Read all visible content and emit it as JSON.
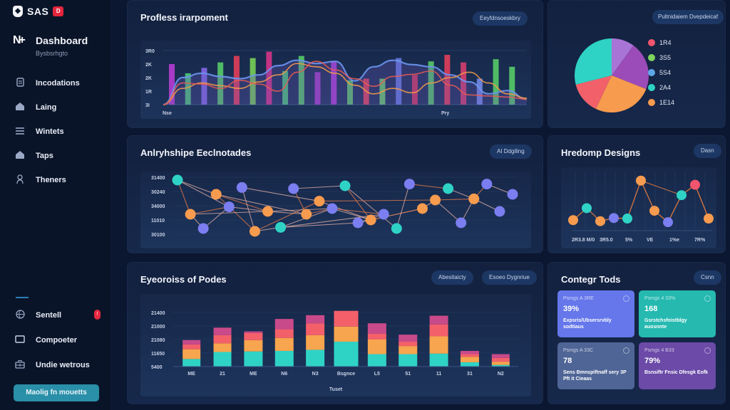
{
  "sidebar": {
    "brand": {
      "logo_icon": "shield-logo-icon",
      "name": "SAS",
      "badge": "D"
    },
    "dashboard": {
      "icon": "logo-mark-icon",
      "title": "Dashboard",
      "subtitle": "Bysbsrhgto"
    },
    "items": [
      {
        "label": "Incodations",
        "icon": "document-icon"
      },
      {
        "label": "Laing",
        "icon": "home-icon"
      },
      {
        "label": "Wintets",
        "icon": "menu-lines-icon"
      },
      {
        "label": "Taps",
        "icon": "home-icon"
      },
      {
        "label": "Theners",
        "icon": "user-icon"
      }
    ],
    "bottom_items": [
      {
        "label": "Sentell",
        "icon": "globe-icon",
        "badge": "!"
      },
      {
        "label": "Compoeter",
        "icon": "monitor-icon"
      },
      {
        "label": "Undie wetrous",
        "icon": "toolbox-icon"
      }
    ],
    "cta_label": "Maolig fn mouetts"
  },
  "panels": {
    "performance": {
      "title": "Profless irarpoment",
      "pill": "Eeyfdnsoeskbry"
    },
    "pie": {
      "pill": "Pultnidaiem Dvepdeicaf"
    },
    "network": {
      "title": "Anlryhshipe Eeclnotades",
      "pill": "AI Ddgiling"
    },
    "scatter": {
      "title": "Hredomp Designs",
      "pill": "Dasn"
    },
    "stacked": {
      "title": "Eyeoroiss of Podes",
      "pills": [
        "Abesitaicty",
        "Esoeo Dygnriue"
      ]
    },
    "kpis": {
      "title": "Contegr Tods",
      "pill": "Csnn",
      "cards": [
        {
          "label": "Psmgs  A 3RE",
          "value": "39%",
          "desc": "Expsris/Ubsersrvbly sodtiaus",
          "color": "#6577ea"
        },
        {
          "label": "Psmgs  4 33%",
          "value": "168",
          "desc": "Gsrstchsfoistblgy auosnnte",
          "color": "#25b9b0"
        },
        {
          "label": "Psmgs  A 33C",
          "value": "78",
          "desc": "Sens Bmnspiftnaff sery 3P Pft it Cieaas",
          "color": "#4f6596"
        },
        {
          "label": "Psmgs  4 B33",
          "value": "79%",
          "desc": "Bsnsiftr Fnsic Dfesgk Eofk",
          "color": "#6b4aa8"
        }
      ]
    }
  },
  "chart_data": [
    {
      "type": "bar",
      "name": "performance-combo",
      "title": "Profless irarpoment",
      "yticks": [
        "3R0",
        "2K",
        "2K",
        "1R",
        "3I"
      ],
      "xticks": [
        "Nse",
        "Pry"
      ],
      "ylim": [
        0,
        100
      ],
      "bars": [
        {
          "v": 75,
          "c": "#c03ddb"
        },
        {
          "v": 58,
          "c": "#4fd17a"
        },
        {
          "v": 68,
          "c": "#8b6cf0"
        },
        {
          "v": 78,
          "c": "#5ad469"
        },
        {
          "v": 90,
          "c": "#f0405a"
        },
        {
          "v": 86,
          "c": "#7ed957"
        },
        {
          "v": 98,
          "c": "#e0358c"
        },
        {
          "v": 62,
          "c": "#4fd17a"
        },
        {
          "v": 90,
          "c": "#5ad469"
        },
        {
          "v": 60,
          "c": "#b040d0"
        },
        {
          "v": 80,
          "c": "#b93fde"
        },
        {
          "v": 45,
          "c": "#63d16a"
        },
        {
          "v": 48,
          "c": "#f0455a"
        },
        {
          "v": 48,
          "c": "#6ed86a"
        },
        {
          "v": 86,
          "c": "#6a7fea"
        },
        {
          "v": 55,
          "c": "#e0385e"
        },
        {
          "v": 80,
          "c": "#5ad469"
        },
        {
          "v": 92,
          "c": "#f0405a"
        },
        {
          "v": 78,
          "c": "#e04070"
        },
        {
          "v": 48,
          "c": "#7a8ff0"
        },
        {
          "v": 84,
          "c": "#5ad469"
        },
        {
          "v": 70,
          "c": "#5ad469"
        }
      ],
      "series": [
        {
          "name": "blue",
          "color": "#6b95f0",
          "values": [
            0,
            50,
            58,
            52,
            48,
            55,
            72,
            82,
            76,
            80,
            44,
            70,
            82,
            74,
            70,
            55,
            42,
            20,
            26,
            10
          ]
        },
        {
          "name": "orange",
          "color": "#f29a4a",
          "values": [
            0,
            30,
            40,
            35,
            30,
            42,
            55,
            76,
            70,
            58,
            36,
            20,
            30,
            22,
            40,
            50,
            60,
            40,
            20,
            12
          ]
        },
        {
          "name": "red",
          "color": "#e45a55",
          "values": [
            0,
            40,
            38,
            30,
            45,
            38,
            25,
            60,
            80,
            64,
            48,
            34,
            52,
            56,
            62,
            36,
            18,
            16,
            14,
            10
          ]
        }
      ]
    },
    {
      "type": "pie",
      "name": "distribution-pie",
      "slices": [
        {
          "label": "1R4",
          "value": 10,
          "color": "#a875d6"
        },
        {
          "label": "3S5",
          "value": 21,
          "color": "#9b4cb8"
        },
        {
          "label": "5S4",
          "value": 26,
          "color": "#f79b4e"
        },
        {
          "label": "2A4",
          "value": 14,
          "color": "#f2616a"
        },
        {
          "label": "1E14",
          "value": 29,
          "color": "#2fd3c6"
        }
      ],
      "legend": [
        {
          "label": "1R4",
          "color": "#f2556e"
        },
        {
          "label": "3S5",
          "color": "#7fd35e"
        },
        {
          "label": "5S4",
          "color": "#5ea8e8"
        },
        {
          "label": "2A4",
          "color": "#2fd3c6"
        },
        {
          "label": "1E14",
          "color": "#f79b4e"
        }
      ]
    },
    {
      "type": "scatter",
      "name": "network-graph",
      "title": "Anlryhshipe Eeclnotades",
      "yticks": [
        "31400",
        "30240",
        "34000",
        "11010",
        "30100"
      ],
      "ylim": [
        0,
        100
      ],
      "nodes": [
        {
          "x": 0,
          "y": 95,
          "c": "#2fd3c6"
        },
        {
          "x": 1,
          "y": 35,
          "c": "#f79b4e"
        },
        {
          "x": 2,
          "y": 10,
          "c": "#7b7ef0"
        },
        {
          "x": 3,
          "y": 70,
          "c": "#f79b4e"
        },
        {
          "x": 4,
          "y": 48,
          "c": "#7b7ef0"
        },
        {
          "x": 5,
          "y": 82,
          "c": "#7b7ef0"
        },
        {
          "x": 6,
          "y": 5,
          "c": "#f79b4e"
        },
        {
          "x": 7,
          "y": 40,
          "c": "#f79b4e"
        },
        {
          "x": 8,
          "y": 12,
          "c": "#2fd3c6"
        },
        {
          "x": 9,
          "y": 80,
          "c": "#7b7ef0"
        },
        {
          "x": 10,
          "y": 35,
          "c": "#f79b4e"
        },
        {
          "x": 11,
          "y": 58,
          "c": "#f79b4e"
        },
        {
          "x": 12,
          "y": 45,
          "c": "#7b7ef0"
        },
        {
          "x": 13,
          "y": 85,
          "c": "#2fd3c6"
        },
        {
          "x": 14,
          "y": 20,
          "c": "#7b7ef0"
        },
        {
          "x": 15,
          "y": 25,
          "c": "#f79b4e"
        },
        {
          "x": 16,
          "y": 35,
          "c": "#7b7ef0"
        },
        {
          "x": 17,
          "y": 10,
          "c": "#2fd3c6"
        },
        {
          "x": 18,
          "y": 88,
          "c": "#7b7ef0"
        },
        {
          "x": 19,
          "y": 45,
          "c": "#f79b4e"
        },
        {
          "x": 20,
          "y": 60,
          "c": "#f79b4e"
        },
        {
          "x": 21,
          "y": 80,
          "c": "#2fd3c6"
        },
        {
          "x": 22,
          "y": 20,
          "c": "#7b7ef0"
        },
        {
          "x": 23,
          "y": 62,
          "c": "#f79b4e"
        },
        {
          "x": 24,
          "y": 88,
          "c": "#7b7ef0"
        },
        {
          "x": 25,
          "y": 40,
          "c": "#7b7ef0"
        },
        {
          "x": 26,
          "y": 70,
          "c": "#7b7ef0"
        }
      ],
      "links": [
        [
          0,
          1
        ],
        [
          0,
          3
        ],
        [
          0,
          4
        ],
        [
          1,
          4
        ],
        [
          1,
          2
        ],
        [
          2,
          4
        ],
        [
          3,
          6
        ],
        [
          4,
          7
        ],
        [
          1,
          7
        ],
        [
          3,
          7
        ],
        [
          5,
          6
        ],
        [
          6,
          8
        ],
        [
          6,
          11
        ],
        [
          5,
          11
        ],
        [
          7,
          10
        ],
        [
          10,
          12
        ],
        [
          12,
          8
        ],
        [
          8,
          14
        ],
        [
          9,
          10
        ],
        [
          11,
          15
        ],
        [
          12,
          15
        ],
        [
          15,
          13
        ],
        [
          13,
          17
        ],
        [
          14,
          19
        ],
        [
          15,
          19
        ],
        [
          9,
          13
        ],
        [
          17,
          18
        ],
        [
          18,
          21
        ],
        [
          21,
          23
        ],
        [
          19,
          20
        ],
        [
          20,
          23
        ],
        [
          20,
          22
        ],
        [
          22,
          23
        ],
        [
          23,
          24
        ],
        [
          24,
          26
        ],
        [
          23,
          25
        ],
        [
          11,
          20
        ],
        [
          3,
          10
        ],
        [
          7,
          12
        ],
        [
          16,
          12
        ],
        [
          16,
          14
        ],
        [
          16,
          8
        ]
      ]
    },
    {
      "type": "scatter",
      "name": "designs-scatter",
      "title": "Hredomp Designs",
      "xticks": [
        "2R3.8 M/0",
        "3R5.0",
        "5%",
        "VE",
        "1%e",
        "7R%"
      ],
      "ylim": [
        0,
        100
      ],
      "points": [
        {
          "x": 0,
          "y": 12,
          "c": "#f79b4e"
        },
        {
          "x": 1,
          "y": 35,
          "c": "#2fd3c6"
        },
        {
          "x": 2,
          "y": 10,
          "c": "#f79b4e"
        },
        {
          "x": 3,
          "y": 16,
          "c": "#7b7ef0"
        },
        {
          "x": 4,
          "y": 15,
          "c": "#2fd3c6"
        },
        {
          "x": 5,
          "y": 88,
          "c": "#f79b4e"
        },
        {
          "x": 6,
          "y": 30,
          "c": "#f79b4e"
        },
        {
          "x": 7,
          "y": 8,
          "c": "#7b7ef0"
        },
        {
          "x": 8,
          "y": 60,
          "c": "#2fd3c6"
        },
        {
          "x": 9,
          "y": 80,
          "c": "#f2556e"
        },
        {
          "x": 10,
          "y": 15,
          "c": "#f79b4e"
        }
      ]
    },
    {
      "type": "bar",
      "name": "stacked-bars",
      "title": "Eyeoroiss of Podes",
      "yticks": [
        "21400",
        "21000",
        "21080",
        "11650",
        "5400"
      ],
      "categories": [
        "ME",
        "21",
        "ME",
        "N6",
        "N3",
        "Bsgnce",
        "L5",
        "51",
        "11",
        "31",
        "N2"
      ],
      "xlabel": "Tuset",
      "ylim": [
        0,
        100
      ],
      "series": [
        {
          "name": "teal",
          "color": "#2fd3c6",
          "values": [
            14,
            27,
            28,
            29,
            31,
            46,
            23,
            23,
            24,
            8,
            3
          ]
        },
        {
          "name": "orange",
          "color": "#f7a54e",
          "values": [
            18,
            16,
            21,
            24,
            27,
            28,
            27,
            15,
            32,
            10,
            6
          ]
        },
        {
          "name": "coral",
          "color": "#f4606a",
          "values": [
            9,
            15,
            13,
            16,
            22,
            29,
            11,
            8,
            22,
            5,
            7
          ]
        },
        {
          "name": "magenta",
          "color": "#c94a8a",
          "values": [
            8,
            14,
            3,
            19,
            15,
            0,
            19,
            13,
            16,
            6,
            7
          ]
        }
      ]
    }
  ]
}
